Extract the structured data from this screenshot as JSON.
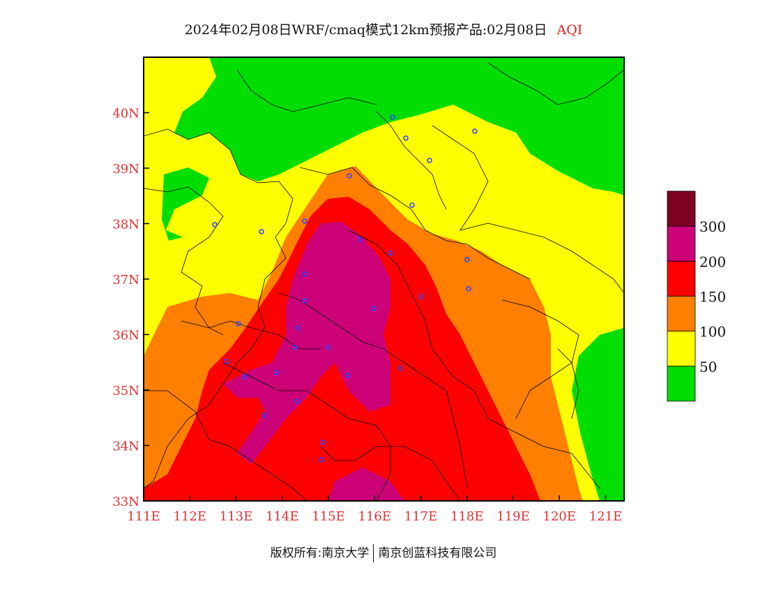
{
  "title": {
    "main": "2024年02月08日WRF/cmaq模式12km预报产品:02月08日",
    "variable": "AQI"
  },
  "axes": {
    "lat_ticks": [
      "40N",
      "39N",
      "38N",
      "37N",
      "36N",
      "35N",
      "34N",
      "33N"
    ],
    "lon_ticks": [
      "111E",
      "112E",
      "113E",
      "114E",
      "115E",
      "116E",
      "117E",
      "118E",
      "119E",
      "120E",
      "121E"
    ],
    "lon_range": [
      111,
      121.4
    ],
    "lat_range": [
      33,
      41
    ],
    "tick_color": "#e03030"
  },
  "legend": {
    "labels": [
      "50",
      "100",
      "150",
      "200",
      "300"
    ],
    "colors": [
      "#00dd00",
      "#ffff00",
      "#ff7f00",
      "#ff0000",
      "#cc0077",
      "#7e0023"
    ]
  },
  "footer": {
    "left": "版权所有:南京大学",
    "right": "南京创蓝科技有限公司"
  }
}
